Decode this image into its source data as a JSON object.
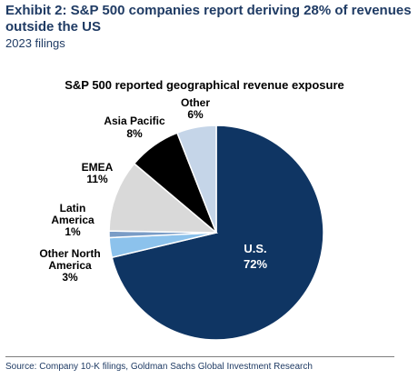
{
  "header": {
    "title": "Exhibit 2: S&P 500 companies report deriving 28% of revenues outside the US",
    "subtitle": "2023 filings"
  },
  "footer": {
    "source": "Source: Company 10-K filings, Goldman Sachs Global Investment Research"
  },
  "colors": {
    "us": "#0f3563",
    "other_north_america": "#8cc2ec",
    "latin_america": "#7a9cc6",
    "emea": "#d9d9d9",
    "asia_pacific": "#000000",
    "other": "#c5d5e8",
    "slice_border": "#ffffff"
  },
  "chart_data": {
    "type": "pie",
    "title": "S&P 500 reported geographical revenue exposure",
    "slices": [
      {
        "name": "U.S.",
        "label_lines": [
          "U.S.",
          "72%"
        ],
        "value": 72,
        "color_key": "us"
      },
      {
        "name": "Other North America",
        "label_lines": [
          "Other North",
          "America",
          "3%"
        ],
        "value": 3,
        "color_key": "other_north_america"
      },
      {
        "name": "Latin America",
        "label_lines": [
          "Latin",
          "America",
          "1%"
        ],
        "value": 1,
        "color_key": "latin_america"
      },
      {
        "name": "EMEA",
        "label_lines": [
          "EMEA",
          "11%"
        ],
        "value": 11,
        "color_key": "emea"
      },
      {
        "name": "Asia Pacific",
        "label_lines": [
          "Asia Pacific",
          "8%"
        ],
        "value": 8,
        "color_key": "asia_pacific"
      },
      {
        "name": "Other",
        "label_lines": [
          "Other",
          "6%"
        ],
        "value": 6,
        "color_key": "other"
      }
    ],
    "start": "12 o'clock",
    "direction": "clockwise"
  }
}
